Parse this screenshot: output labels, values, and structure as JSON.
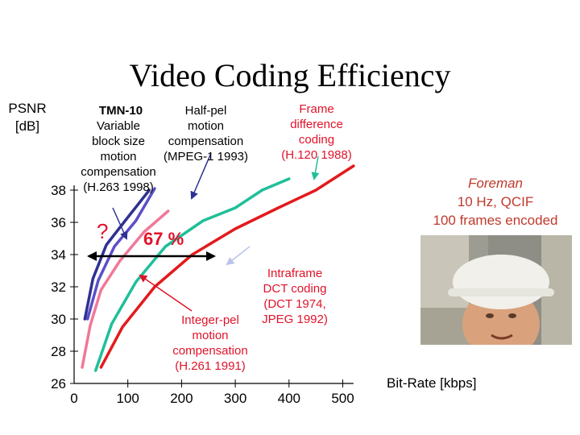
{
  "title": "Video Coding Efficiency",
  "chart_data": {
    "type": "line",
    "ylabel": "PSNR\n[dB]",
    "xlabel": "Bit-Rate [kbps]",
    "xlim": [
      0,
      500
    ],
    "ylim": [
      26,
      39
    ],
    "x_ticks": [
      "0",
      "100",
      "200",
      "300",
      "400",
      "500"
    ],
    "y_ticks": [
      "26",
      "28",
      "30",
      "32",
      "34",
      "36",
      "38"
    ],
    "grid": false,
    "series": [
      {
        "name": "TMN-10 Variable block size motion compensation (H.263 1998)",
        "color": "#2e3192",
        "x": [
          20,
          35,
          60,
          95,
          140
        ],
        "y": [
          30.0,
          32.5,
          34.6,
          36.1,
          38.0
        ]
      },
      {
        "name": "Half-pel motion compensation (MPEG-1 1993)",
        "color": "#5b4fc8",
        "x": [
          25,
          45,
          75,
          115,
          150
        ],
        "y": [
          30.0,
          32.4,
          34.5,
          36.1,
          38.1
        ]
      },
      {
        "name": "",
        "color": "#f07898",
        "x": [
          15,
          30,
          50,
          85,
          130,
          175
        ],
        "y": [
          27.0,
          29.6,
          31.8,
          33.6,
          35.4,
          36.7
        ]
      },
      {
        "name": "Frame difference coding (H.120 1988)",
        "color": "#1fbf99",
        "x": [
          40,
          70,
          115,
          170,
          240,
          300,
          350,
          400
        ],
        "y": [
          26.8,
          29.7,
          32.3,
          34.5,
          36.1,
          36.9,
          38.0,
          38.7
        ]
      },
      {
        "name": "Integer-pel motion compensation (H.261 1991)",
        "color": "#e31a1c",
        "x": [
          50,
          90,
          150,
          220,
          300,
          380,
          450,
          520
        ],
        "y": [
          27.0,
          29.5,
          32.0,
          34.0,
          35.6,
          36.9,
          38.0,
          39.5
        ]
      }
    ],
    "annotations": [
      {
        "text": "TMN-10",
        "bold": true
      },
      {
        "text": "Variable\nblock size\nmotion\ncompensation\n(H.263 1998)"
      },
      {
        "text": "Half-pel\nmotion\ncompensation\n(MPEG-1 1993)"
      },
      {
        "text": "Frame\ndifference\ncoding\n(H.120 1988)"
      },
      {
        "text": "Intraframe\nDCT coding\n(DCT 1974,\nJPEG 1992)"
      },
      {
        "text": "Integer-pel\nmotion\ncompensation\n(H.261 1991)"
      },
      {
        "text": "67 %"
      },
      {
        "text": "?"
      }
    ]
  },
  "foreman": {
    "line1": "Foreman",
    "line2": "10 Hz, QCIF",
    "line3": "100 frames encoded"
  },
  "colors": {
    "arrow_red": "#e0132a",
    "arrow_blue": "#2e3192",
    "arrow_green": "#1fbf99",
    "arrow_lavender": "#b9c4e8",
    "arrow_black": "#000000"
  }
}
